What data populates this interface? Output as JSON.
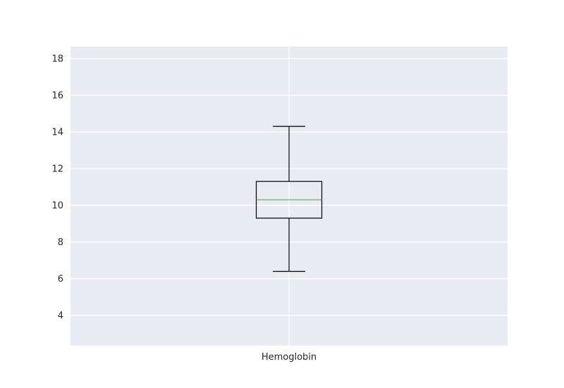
{
  "chart_data": {
    "type": "box",
    "categories": [
      "Hemoglobin"
    ],
    "boxes": [
      {
        "name": "Hemoglobin",
        "whisker_low": 6.4,
        "q1": 9.3,
        "median": 10.3,
        "q3": 11.3,
        "whisker_high": 14.3
      }
    ],
    "ylim": [
      2.35,
      18.65
    ],
    "yticks": [
      4,
      6,
      8,
      10,
      12,
      14,
      16,
      18
    ],
    "grid": true,
    "colors": {
      "background": "#eaeaf2",
      "grid": "#ffffff",
      "box": "#000000",
      "median": "#55a868"
    }
  }
}
